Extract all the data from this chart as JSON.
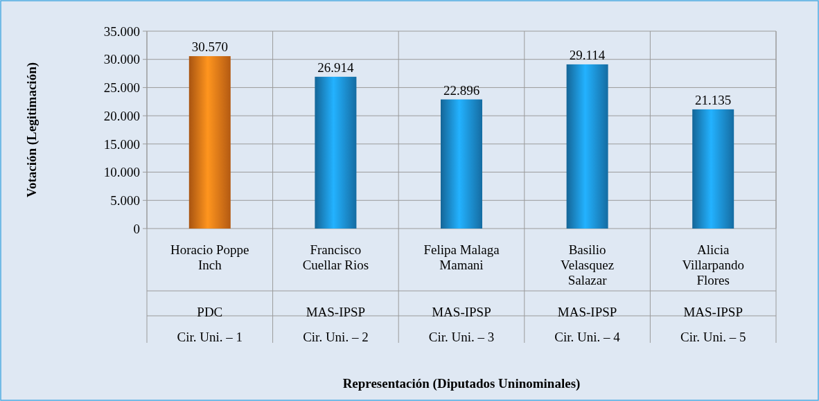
{
  "chart_data": {
    "type": "bar",
    "annotations": [
      "Representación (Diputados Uninominales)"
    ],
    "ylabel": "Votación (Legitimación)",
    "categories": [
      "Horacio Poppe Inch\nPDC\nCir. Uni. – 1",
      "Francisco Cuellar Rios\nMAS-IPSP\nCir. Uni. – 2",
      "Felipa Malaga Mamani\nMAS-IPSP\nCir. Uni. – 3",
      "Basilio Velasquez Salazar\nMAS-IPSP\nCir. Uni. – 4",
      "Alicia Villarpando Flores\nMAS-IPSP\nCir. Uni. – 5"
    ],
    "values": [
      30570,
      26914,
      22896,
      29114,
      21135
    ],
    "value_labels": [
      "30.570",
      "26.914",
      "22.896",
      "29.114",
      "21.135"
    ],
    "colors": [
      "#f07818",
      "#1c90d8",
      "#1c90d8",
      "#1c90d8",
      "#1c90d8"
    ],
    "ylim": [
      0,
      35000
    ],
    "yticks": [
      0,
      {
        "value": 5000,
        "label": "5.000"
      },
      {
        "value": 10000,
        "label": "10.000"
      },
      {
        "value": 15000,
        "label": "15.000"
      },
      {
        "value": 20000,
        "label": "20.000"
      },
      {
        "value": 25000,
        "label": "25.000"
      },
      {
        "value": 30000,
        "label": "30.000"
      },
      {
        "value": 35000,
        "label": "35.000"
      }
    ],
    "grid": "y"
  }
}
